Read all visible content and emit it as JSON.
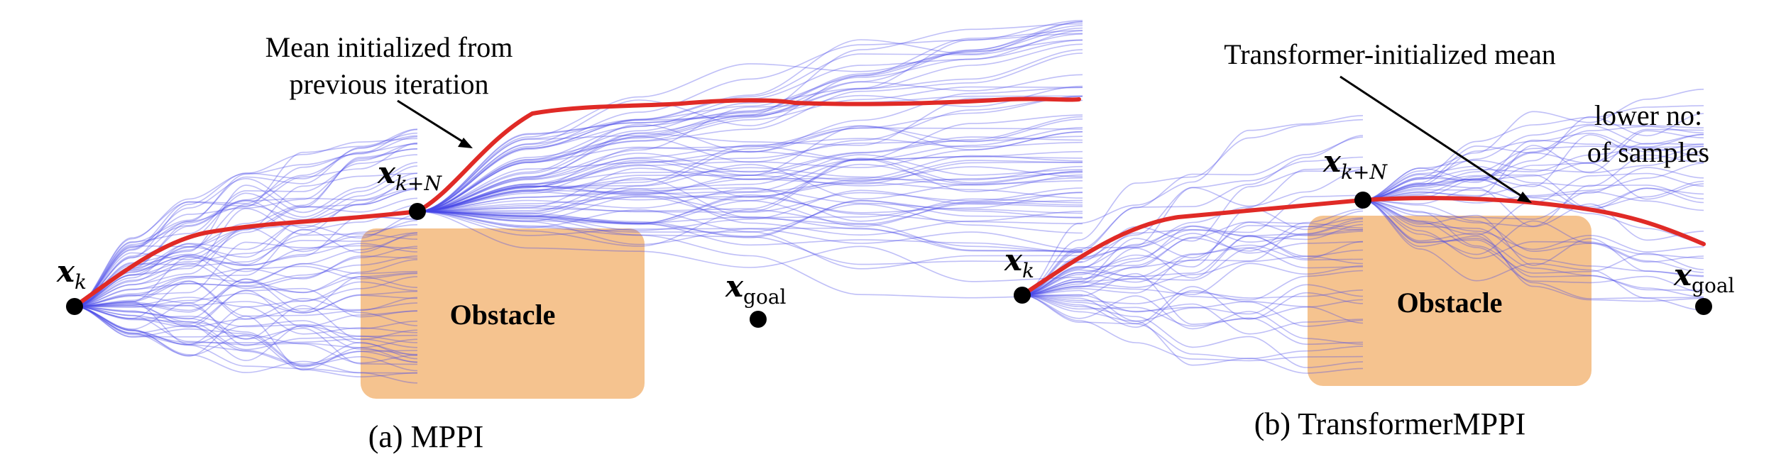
{
  "panels": [
    {
      "id": "a",
      "caption": "(a) MPPI",
      "obstacle_label": "Obstacle",
      "start_label": {
        "main": "x",
        "sub": "k"
      },
      "mid_label": {
        "main": "x",
        "sub": "k+N"
      },
      "goal_label": {
        "main": "x",
        "sub": "goal"
      },
      "annotation": [
        "Mean initialized from",
        "previous iteration"
      ]
    },
    {
      "id": "b",
      "caption": "(b) TransformerMPPI",
      "obstacle_label": "Obstacle",
      "start_label": {
        "main": "x",
        "sub": "k"
      },
      "mid_label": {
        "main": "x",
        "sub": "k+N"
      },
      "goal_label": {
        "main": "x",
        "sub": "goal"
      },
      "annotation": [
        "Transformer-initialized mean"
      ],
      "annotation2": [
        "lower no:",
        "of samples"
      ]
    }
  ],
  "colors": {
    "obstacle": "#f5c38f",
    "samples": "#4848e8",
    "mean": "#e02a26",
    "node": "#000000",
    "text": "#000000"
  }
}
